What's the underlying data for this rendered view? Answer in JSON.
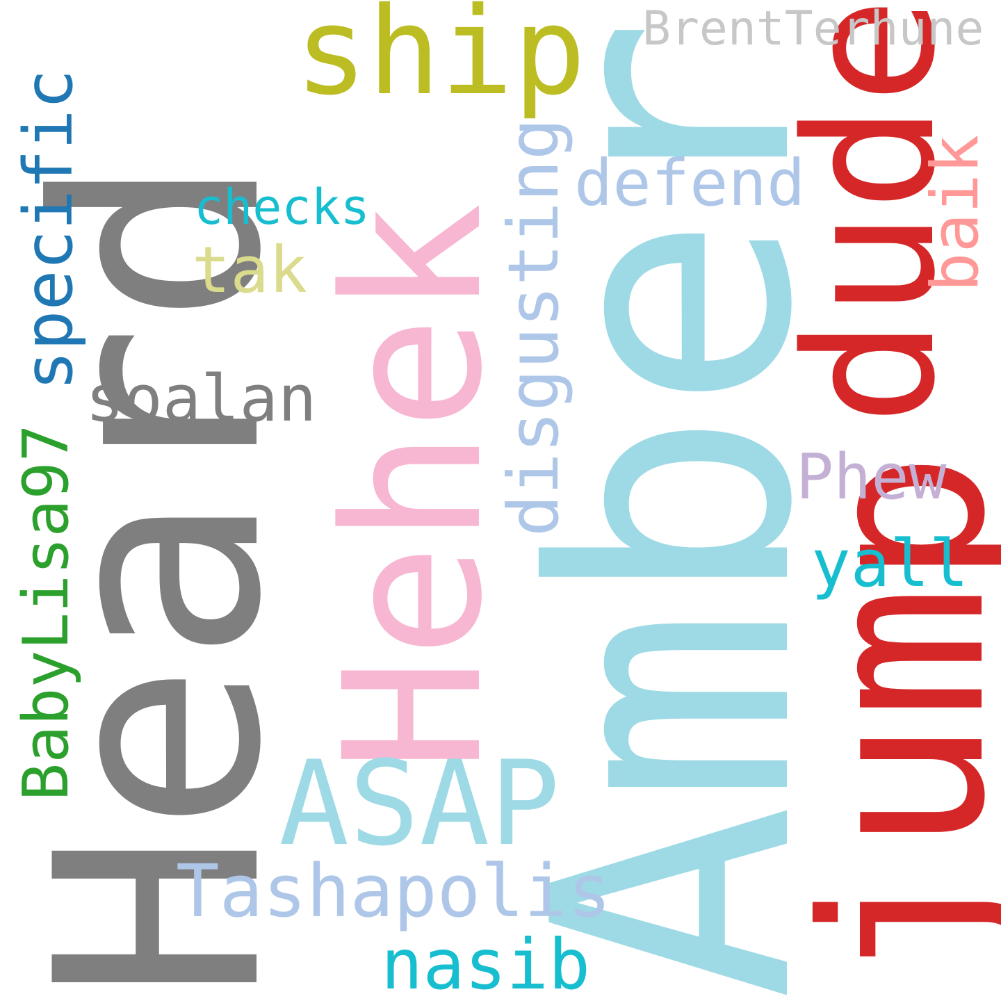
{
  "word_cloud": {
    "background": "#ffffff",
    "words": [
      {
        "key": "heard",
        "text": "Heard",
        "color": "#7f7f7f",
        "orientation": "vertical"
      },
      {
        "key": "amber",
        "text": "Amber",
        "color": "#9edae5",
        "orientation": "vertical"
      },
      {
        "key": "hehek",
        "text": "Hehek",
        "color": "#f7b6d2",
        "orientation": "vertical"
      },
      {
        "key": "jump",
        "text": "jump",
        "color": "#d62728",
        "orientation": "vertical"
      },
      {
        "key": "dude",
        "text": "dude",
        "color": "#d62728",
        "orientation": "vertical"
      },
      {
        "key": "ship",
        "text": "ship",
        "color": "#bcbd22",
        "orientation": "horizontal"
      },
      {
        "key": "asap",
        "text": "ASAP",
        "color": "#9edae5",
        "orientation": "horizontal"
      },
      {
        "key": "tashapolis",
        "text": "Tashapolis",
        "color": "#aec7e8",
        "orientation": "horizontal"
      },
      {
        "key": "nasib",
        "text": "nasib",
        "color": "#17becf",
        "orientation": "horizontal"
      },
      {
        "key": "disgusting",
        "text": "disgusting",
        "color": "#aec7e8",
        "orientation": "vertical"
      },
      {
        "key": "specific",
        "text": "specific",
        "color": "#1f77b4",
        "orientation": "vertical"
      },
      {
        "key": "babylisa",
        "text": "BabyLisa97",
        "color": "#2ca02c",
        "orientation": "vertical"
      },
      {
        "key": "soalan",
        "text": "soalan",
        "color": "#7f7f7f",
        "orientation": "horizontal"
      },
      {
        "key": "defend",
        "text": "defend",
        "color": "#aec7e8",
        "orientation": "horizontal"
      },
      {
        "key": "yall",
        "text": "yall",
        "color": "#17becf",
        "orientation": "horizontal"
      },
      {
        "key": "tak",
        "text": "tak",
        "color": "#dbdb8d",
        "orientation": "horizontal"
      },
      {
        "key": "phew",
        "text": "Phew",
        "color": "#c5b0d5",
        "orientation": "horizontal"
      },
      {
        "key": "checks",
        "text": "checks",
        "color": "#17becf",
        "orientation": "horizontal"
      },
      {
        "key": "baik",
        "text": "baik",
        "color": "#ff9896",
        "orientation": "vertical"
      },
      {
        "key": "brent",
        "text": "BrentTerhune",
        "color": "#c7c7c7",
        "orientation": "horizontal"
      }
    ]
  }
}
